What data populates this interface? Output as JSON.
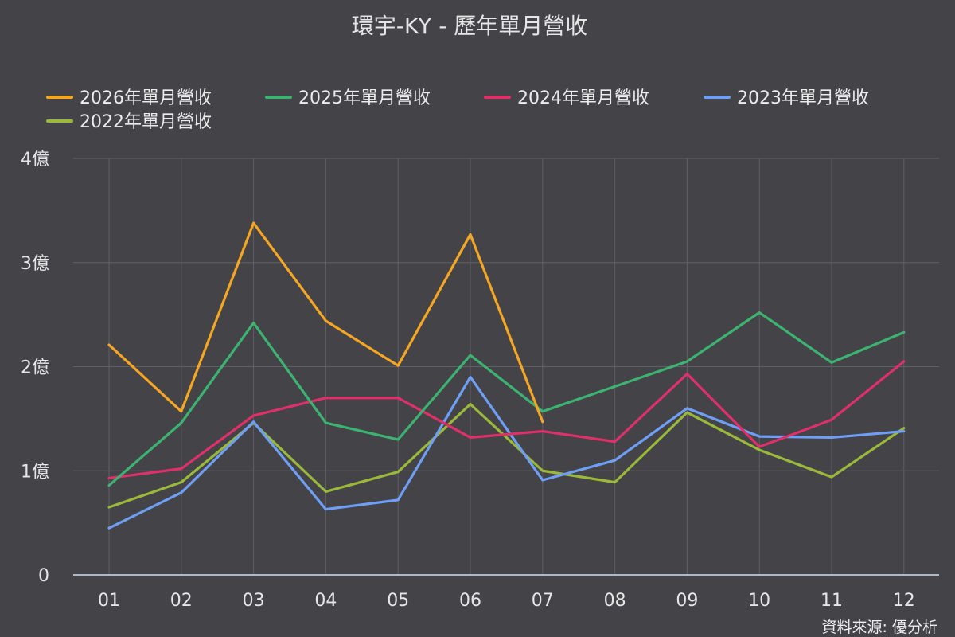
{
  "chart_data": {
    "type": "line",
    "title": "環宇-KY - 歷年單月營收",
    "categories": [
      "01",
      "02",
      "03",
      "04",
      "05",
      "06",
      "07",
      "08",
      "09",
      "10",
      "11",
      "12"
    ],
    "y_ticks": [
      "0",
      "1億",
      "2億",
      "3億",
      "4億"
    ],
    "ylim": [
      0,
      4
    ],
    "y_unit": "億",
    "grid": true,
    "legend_position": "top",
    "series": [
      {
        "name": "2026年單月營收",
        "color": "#f5a623",
        "values": [
          2.21,
          1.57,
          3.38,
          2.44,
          2.01,
          3.27,
          1.47,
          null,
          null,
          null,
          null,
          null
        ]
      },
      {
        "name": "2025年單月營收",
        "color": "#3cb371",
        "values": [
          0.86,
          1.46,
          2.42,
          1.46,
          1.3,
          2.11,
          1.57,
          1.81,
          2.05,
          2.52,
          2.04,
          2.33
        ]
      },
      {
        "name": "2024年單月營收",
        "color": "#e0306a",
        "values": [
          0.93,
          1.02,
          1.53,
          1.7,
          1.7,
          1.32,
          1.38,
          1.28,
          1.93,
          1.23,
          1.49,
          2.05
        ]
      },
      {
        "name": "2023年單月營收",
        "color": "#6f9ff5",
        "values": [
          0.45,
          0.79,
          1.47,
          0.63,
          0.72,
          1.9,
          0.91,
          1.1,
          1.6,
          1.33,
          1.32,
          1.38
        ]
      },
      {
        "name": "2022年單月營收",
        "color": "#9ab83a",
        "values": [
          0.65,
          0.89,
          1.46,
          0.8,
          0.99,
          1.64,
          1.0,
          0.89,
          1.56,
          1.2,
          0.94,
          1.41
        ]
      }
    ],
    "source": "資料來源: 優分析"
  }
}
